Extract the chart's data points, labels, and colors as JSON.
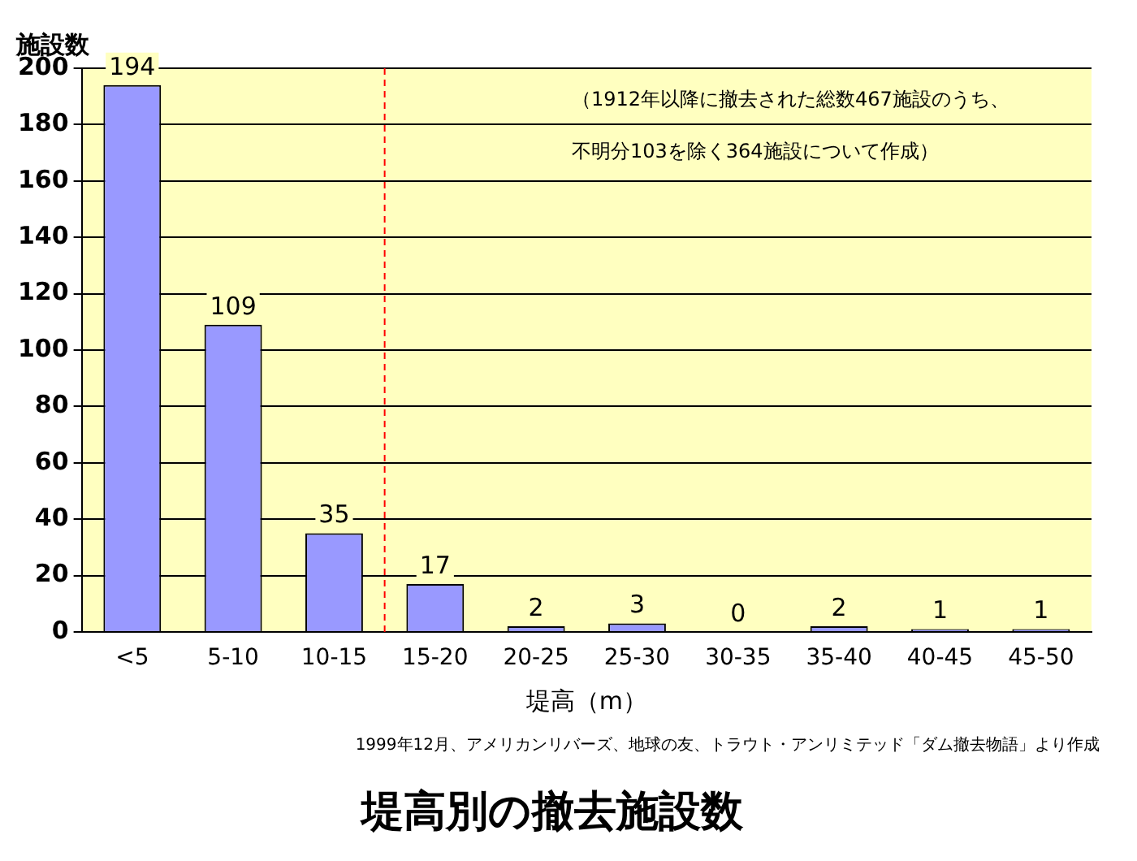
{
  "chart_data": {
    "type": "bar",
    "title": "堤高別の撤去施設数",
    "xlabel": "堤高（m）",
    "ylabel": "施設数",
    "categories": [
      "<5",
      "5-10",
      "10-15",
      "15-20",
      "20-25",
      "25-30",
      "30-35",
      "35-40",
      "40-45",
      "45-50"
    ],
    "values": [
      194,
      109,
      35,
      17,
      2,
      3,
      0,
      2,
      1,
      1
    ],
    "color": "#9999ff",
    "ylim": [
      0,
      200
    ],
    "yticks": [
      0,
      20,
      40,
      60,
      80,
      100,
      120,
      140,
      160,
      180,
      200
    ],
    "grid": "y",
    "data_labels": true,
    "legend": false,
    "ref_lines": [
      {
        "axis": "x",
        "value": "15-20",
        "color": "#ff0000",
        "line_style": "dashed"
      }
    ],
    "annotations": [
      "（1912年以降に撤去された総数467施設のうち、不明分103を除く364施設について作成）",
      "1999年12月、アメリカンリバーズ、地球の友、トラウト・アンリミテッド「ダム撤去物語」より作成"
    ]
  }
}
